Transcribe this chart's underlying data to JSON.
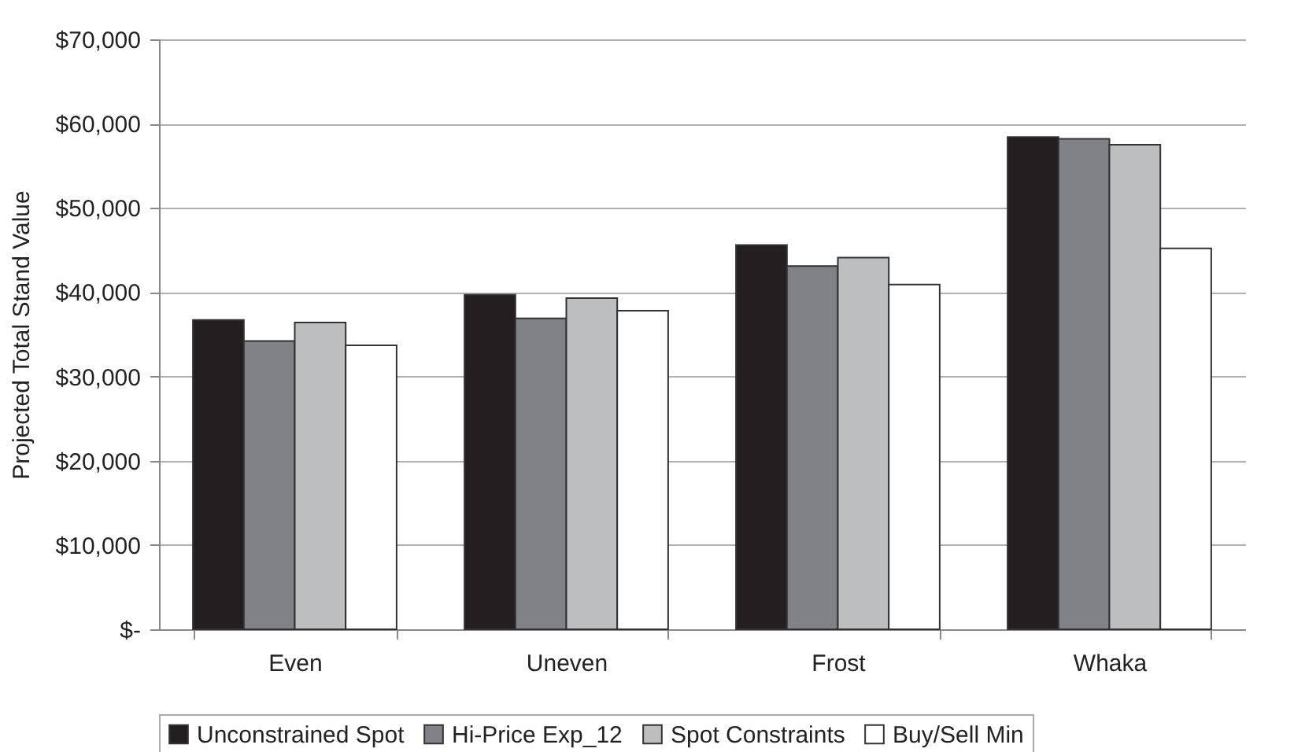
{
  "chart_data": {
    "type": "bar",
    "ylabel": "Projected Total Stand Value",
    "categories": [
      "Even",
      "Uneven",
      "Frost",
      "Whaka"
    ],
    "series": [
      {
        "name": "Unconstrained Spot",
        "color": "#231f20",
        "values": [
          36700,
          39700,
          45600,
          58400
        ]
      },
      {
        "name": "Hi-Price Exp_12",
        "color": "#808285",
        "values": [
          34200,
          36900,
          43100,
          58200
        ]
      },
      {
        "name": "Spot Constraints",
        "color": "#bcbec0",
        "values": [
          36400,
          39300,
          44100,
          57500
        ]
      },
      {
        "name": "Buy/Sell Min",
        "color": "#ffffff",
        "values": [
          33700,
          37800,
          40900,
          45200
        ]
      }
    ],
    "ylim": [
      0,
      70000
    ],
    "yticks": [
      {
        "value": 0,
        "label": "$-"
      },
      {
        "value": 10000,
        "label": "$10,000"
      },
      {
        "value": 20000,
        "label": "$20,000"
      },
      {
        "value": 30000,
        "label": "$30,000"
      },
      {
        "value": 40000,
        "label": "$40,000"
      },
      {
        "value": 50000,
        "label": "$50,000"
      },
      {
        "value": 60000,
        "label": "$60,000"
      },
      {
        "value": 70000,
        "label": "$70,000"
      }
    ],
    "grid": "y",
    "legend": "bottom"
  }
}
